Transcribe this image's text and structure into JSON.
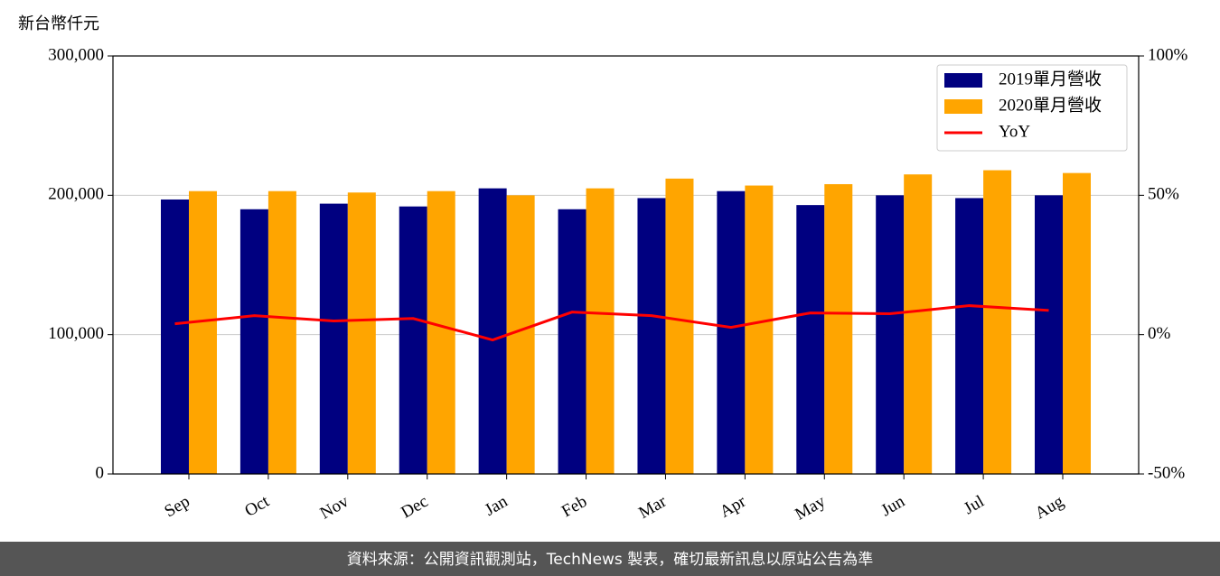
{
  "chart_data": {
    "type": "bar-line",
    "y_label": "新台幣仟元",
    "categories": [
      "Sep",
      "Oct",
      "Nov",
      "Dec",
      "Jan",
      "Feb",
      "Mar",
      "Apr",
      "May",
      "Jun",
      "Jul",
      "Aug"
    ],
    "series": [
      {
        "name": "2019單月營收",
        "color": "#000080",
        "type": "bar",
        "values": [
          197000,
          190000,
          194000,
          192000,
          205000,
          190000,
          198000,
          203000,
          193000,
          200000,
          198000,
          200000
        ]
      },
      {
        "name": "2020單月營收",
        "color": "#ffa500",
        "type": "bar",
        "values": [
          203000,
          203000,
          202000,
          203000,
          200000,
          205000,
          212000,
          207000,
          208000,
          215000,
          218000,
          216000
        ]
      },
      {
        "name": "YoY",
        "color": "#ff0000",
        "type": "line",
        "axis": "y2",
        "values": [
          3.9,
          6.8,
          4.9,
          5.8,
          -1.9,
          8.1,
          6.8,
          2.6,
          7.8,
          7.5,
          10.4,
          8.7
        ]
      }
    ],
    "ylim": [
      0,
      300000
    ],
    "yticks": [
      0,
      {
        "value": 100000,
        "label": "100,000"
      },
      {
        "value": 200000,
        "label": "200,000"
      },
      {
        "value": 300000,
        "label": "300,000"
      }
    ],
    "y2lim": [
      -50,
      100
    ],
    "y2ticks": [
      {
        "value": -50,
        "label": "-50%"
      },
      {
        "value": 0,
        "label": "0%"
      },
      {
        "value": 50,
        "label": "50%"
      },
      {
        "value": 100,
        "label": "100%"
      }
    ],
    "grid": true,
    "legend": "upper right"
  },
  "footer": "資料來源：公開資訊觀測站，TechNews 製表，確切最新訊息以原站公告為準"
}
